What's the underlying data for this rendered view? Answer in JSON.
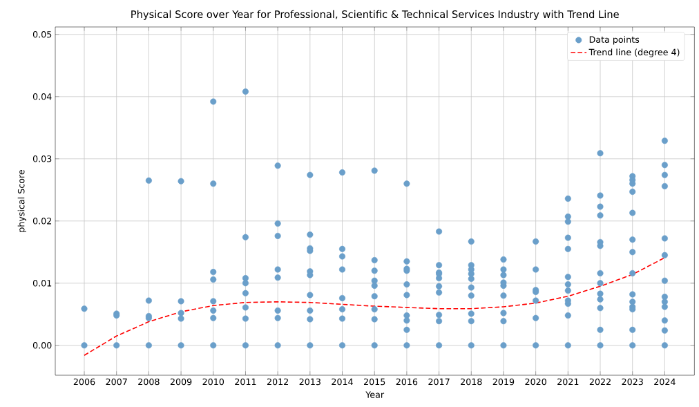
{
  "chart_data": {
    "type": "scatter",
    "title": "Physical Score over Year for Professional, Scientific & Technical Services Industry with Trend Line",
    "xlabel": "Year",
    "ylabel": "physical Score",
    "xlim": [
      2005.1,
      2024.92
    ],
    "ylim": [
      -0.0048,
      0.0512
    ],
    "xticks": [
      2006,
      2007,
      2008,
      2009,
      2010,
      2011,
      2012,
      2013,
      2014,
      2015,
      2016,
      2017,
      2018,
      2019,
      2020,
      2021,
      2022,
      2023,
      2024
    ],
    "yticks": [
      {
        "value": 0,
        "label": "0.00"
      },
      {
        "value": 0.01,
        "label": "0.01"
      },
      {
        "value": 0.02,
        "label": "0.02"
      },
      {
        "value": 0.03,
        "label": "0.03"
      },
      {
        "value": 0.04,
        "label": "0.04"
      },
      {
        "value": 0.05,
        "label": "0.05"
      }
    ],
    "grid": true,
    "legend": "top right",
    "series": [
      {
        "name": "Data points",
        "marker": "circle",
        "color": "#6a9fca",
        "x": [
          2006,
          2006,
          2007,
          2007,
          2007,
          2008,
          2008,
          2008,
          2008,
          2008,
          2009,
          2009,
          2009,
          2009,
          2009,
          2010,
          2010,
          2010,
          2010,
          2010,
          2010,
          2010,
          2010,
          2011,
          2011,
          2011,
          2011,
          2011,
          2011,
          2011,
          2011,
          2012,
          2012,
          2012,
          2012,
          2012,
          2012,
          2012,
          2012,
          2013,
          2013,
          2013,
          2013,
          2013,
          2013,
          2013,
          2013,
          2013,
          2013,
          2014,
          2014,
          2014,
          2014,
          2014,
          2014,
          2014,
          2014,
          2015,
          2015,
          2015,
          2015,
          2015,
          2015,
          2015,
          2015,
          2015,
          2016,
          2016,
          2016,
          2016,
          2016,
          2016,
          2016,
          2016,
          2016,
          2016,
          2017,
          2017,
          2017,
          2017,
          2017,
          2017,
          2017,
          2017,
          2017,
          2017,
          2018,
          2018,
          2018,
          2018,
          2018,
          2018,
          2018,
          2018,
          2018,
          2018,
          2019,
          2019,
          2019,
          2019,
          2019,
          2019,
          2019,
          2019,
          2019,
          2020,
          2020,
          2020,
          2020,
          2020,
          2020,
          2020,
          2021,
          2021,
          2021,
          2021,
          2021,
          2021,
          2021,
          2021,
          2021,
          2021,
          2021,
          2021,
          2022,
          2022,
          2022,
          2022,
          2022,
          2022,
          2022,
          2022,
          2022,
          2022,
          2022,
          2022,
          2022,
          2023,
          2023,
          2023,
          2023,
          2023,
          2023,
          2023,
          2023,
          2023,
          2023,
          2023,
          2023,
          2023,
          2023,
          2024,
          2024,
          2024,
          2024,
          2024,
          2024,
          2024,
          2024,
          2024,
          2024,
          2024,
          2024,
          2024
        ],
        "values": [
          0.0059,
          0,
          0.0051,
          0.0048,
          0,
          0.0265,
          0.0072,
          0.0047,
          0.0044,
          0,
          0.0264,
          0.0071,
          0.0052,
          0.0043,
          0,
          0.0392,
          0.026,
          0.0118,
          0.0106,
          0.0071,
          0.0056,
          0.0044,
          0,
          0.0408,
          0.0174,
          0.0108,
          0.01,
          0.0084,
          0.0061,
          0.0043,
          0,
          0.0289,
          0.0196,
          0.0176,
          0.0122,
          0.0109,
          0.0056,
          0.0044,
          0,
          0.0274,
          0.0178,
          0.0156,
          0.0152,
          0.0119,
          0.0113,
          0.0081,
          0.0056,
          0.0042,
          0,
          0.0278,
          0.0155,
          0.0143,
          0.0122,
          0.0076,
          0.0058,
          0.0043,
          0,
          0.0281,
          0.0137,
          0.012,
          0.0104,
          0.0096,
          0.0079,
          0.0058,
          0.0042,
          0,
          0.026,
          0.0135,
          0.0123,
          0.012,
          0.0098,
          0.0081,
          0.0048,
          0.004,
          0.0025,
          0,
          0.0183,
          0.0129,
          0.0117,
          0.0115,
          0.0108,
          0.0095,
          0.0085,
          0.0049,
          0.0039,
          0,
          0.0167,
          0.0129,
          0.0122,
          0.0115,
          0.0107,
          0.0093,
          0.008,
          0.0051,
          0.0039,
          0,
          0.0138,
          0.0122,
          0.0113,
          0.0101,
          0.0096,
          0.008,
          0.0052,
          0.0039,
          0,
          0.0167,
          0.0122,
          0.0089,
          0.0086,
          0.0072,
          0.0044,
          0,
          0.0236,
          0.0207,
          0.0199,
          0.0173,
          0.0155,
          0.011,
          0.0098,
          0.0088,
          0.0072,
          0.0067,
          0.0048,
          0,
          0.0309,
          0.0241,
          0.0223,
          0.0209,
          0.0166,
          0.016,
          0.0116,
          0.01,
          0.0083,
          0.0074,
          0.006,
          0.0025,
          0,
          0.0272,
          0.0266,
          0.026,
          0.0247,
          0.0213,
          0.017,
          0.015,
          0.0116,
          0.0082,
          0.007,
          0.0062,
          0.0058,
          0.0025,
          0,
          0.0329,
          0.029,
          0.0274,
          0.0256,
          0.0172,
          0.0145,
          0.0104,
          0.0078,
          0.007,
          0.0062,
          0.004,
          0.0024,
          0
        ]
      },
      {
        "name": "Trend line (degree 4)",
        "type": "line",
        "marker": "none",
        "line_style": "dashed",
        "color": "#ff0000",
        "x": [
          2006,
          2007,
          2008,
          2009,
          2010,
          2011,
          2012,
          2013,
          2014,
          2015,
          2016,
          2017,
          2018,
          2019,
          2020,
          2021,
          2022,
          2023,
          2024
        ],
        "values": [
          -0.0016,
          0.0015,
          0.0038,
          0.0054,
          0.0064,
          0.0069,
          0.007,
          0.0069,
          0.0066,
          0.0063,
          0.0061,
          0.0059,
          0.0059,
          0.0062,
          0.0068,
          0.0079,
          0.0095,
          0.0114,
          0.0141
        ]
      }
    ]
  }
}
